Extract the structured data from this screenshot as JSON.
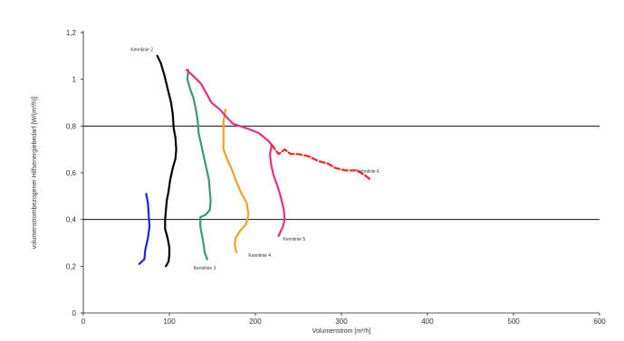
{
  "chart_data": {
    "type": "line",
    "title": "",
    "xlabel": "Volumenstrom [m³/h]",
    "ylabel": "volumenstrombezogener Hilfsenergiebedarf [W/(m³/h)]",
    "xlim": [
      0,
      600
    ],
    "ylim": [
      0,
      1.2
    ],
    "x_ticks": [
      "0",
      "100",
      "200",
      "300",
      "400",
      "500",
      "600"
    ],
    "y_ticks": [
      "0",
      "0,2",
      "0,4",
      "0,6",
      "0,8",
      "1",
      "1,2"
    ],
    "grid": "horizontal lines at 0.4 and 0.8",
    "reference_lines": [
      0.4,
      0.8
    ],
    "legend": "none",
    "series": [
      {
        "name": "Kennlinie 2",
        "color": "#000000",
        "dashed": false,
        "label_pos": [
          55,
          1.12
        ],
        "points": [
          [
            86,
            1.1
          ],
          [
            90,
            1.07
          ],
          [
            94,
            1.02
          ],
          [
            98,
            0.96
          ],
          [
            102,
            0.9
          ],
          [
            104,
            0.85
          ],
          [
            105,
            0.79
          ],
          [
            107,
            0.75
          ],
          [
            108,
            0.7
          ],
          [
            107,
            0.66
          ],
          [
            104,
            0.62
          ],
          [
            101,
            0.57
          ],
          [
            99,
            0.52
          ],
          [
            97,
            0.48
          ],
          [
            96,
            0.44
          ],
          [
            95,
            0.4
          ],
          [
            95,
            0.36
          ],
          [
            98,
            0.32
          ],
          [
            100,
            0.28
          ],
          [
            100,
            0.25
          ],
          [
            99,
            0.22
          ],
          [
            96,
            0.2
          ]
        ]
      },
      {
        "name": "Kennlinie 3",
        "color": "#3a9a6a",
        "dashed": false,
        "label_pos": [
          128,
          0.185
        ],
        "points": [
          [
            122,
            1.04
          ],
          [
            121,
            1.0
          ],
          [
            124,
            0.96
          ],
          [
            128,
            0.92
          ],
          [
            131,
            0.87
          ],
          [
            133,
            0.82
          ],
          [
            134,
            0.77
          ],
          [
            137,
            0.72
          ],
          [
            140,
            0.67
          ],
          [
            143,
            0.62
          ],
          [
            146,
            0.57
          ],
          [
            147,
            0.52
          ],
          [
            148,
            0.48
          ],
          [
            147,
            0.44
          ],
          [
            142,
            0.42
          ],
          [
            136,
            0.41
          ],
          [
            136,
            0.37
          ],
          [
            138,
            0.33
          ],
          [
            140,
            0.29
          ],
          [
            141,
            0.26
          ],
          [
            144,
            0.23
          ]
        ]
      },
      {
        "name": "Kennlinie 4",
        "color": "#f6a020",
        "dashed": false,
        "label_pos": [
          192,
          0.24
        ],
        "points": [
          [
            165,
            0.87
          ],
          [
            163,
            0.82
          ],
          [
            163,
            0.76
          ],
          [
            163,
            0.7
          ],
          [
            167,
            0.66
          ],
          [
            173,
            0.61
          ],
          [
            178,
            0.56
          ],
          [
            184,
            0.51
          ],
          [
            190,
            0.47
          ],
          [
            192,
            0.42
          ],
          [
            189,
            0.38
          ],
          [
            182,
            0.35
          ],
          [
            177,
            0.32
          ],
          [
            176,
            0.29
          ],
          [
            178,
            0.26
          ]
        ]
      },
      {
        "name": "Kennlinie 5",
        "color": "#ee2a88",
        "dashed": false,
        "label_pos": [
          232,
          0.31
        ],
        "points": [
          [
            120,
            1.04
          ],
          [
            129,
            1.01
          ],
          [
            137,
            0.98
          ],
          [
            143,
            0.94
          ],
          [
            149,
            0.9
          ],
          [
            159,
            0.87
          ],
          [
            166,
            0.84
          ],
          [
            174,
            0.81
          ],
          [
            190,
            0.79
          ],
          [
            204,
            0.77
          ],
          [
            214,
            0.74
          ],
          [
            219,
            0.72
          ],
          [
            217,
            0.68
          ],
          [
            218,
            0.64
          ],
          [
            221,
            0.59
          ],
          [
            226,
            0.54
          ],
          [
            230,
            0.49
          ],
          [
            233,
            0.44
          ],
          [
            234,
            0.4
          ],
          [
            232,
            0.37
          ],
          [
            227,
            0.33
          ]
        ]
      },
      {
        "name": "Kennlinie 6",
        "color": "#ff2020",
        "dashed": true,
        "label_pos": [
          318,
          0.6
        ],
        "points": [
          [
            219,
            0.72
          ],
          [
            227,
            0.68
          ],
          [
            234,
            0.7
          ],
          [
            241,
            0.68
          ],
          [
            250,
            0.68
          ],
          [
            262,
            0.67
          ],
          [
            273,
            0.65
          ],
          [
            284,
            0.64
          ],
          [
            293,
            0.62
          ],
          [
            305,
            0.61
          ],
          [
            318,
            0.61
          ],
          [
            327,
            0.59
          ],
          [
            334,
            0.57
          ]
        ]
      },
      {
        "name": "",
        "color": "#1f22e0",
        "dashed": false,
        "label_pos": null,
        "points": [
          [
            73,
            0.51
          ],
          [
            75,
            0.47
          ],
          [
            76,
            0.42
          ],
          [
            77,
            0.37
          ],
          [
            75,
            0.32
          ],
          [
            72,
            0.27
          ],
          [
            71,
            0.23
          ],
          [
            65,
            0.21
          ]
        ]
      }
    ]
  }
}
